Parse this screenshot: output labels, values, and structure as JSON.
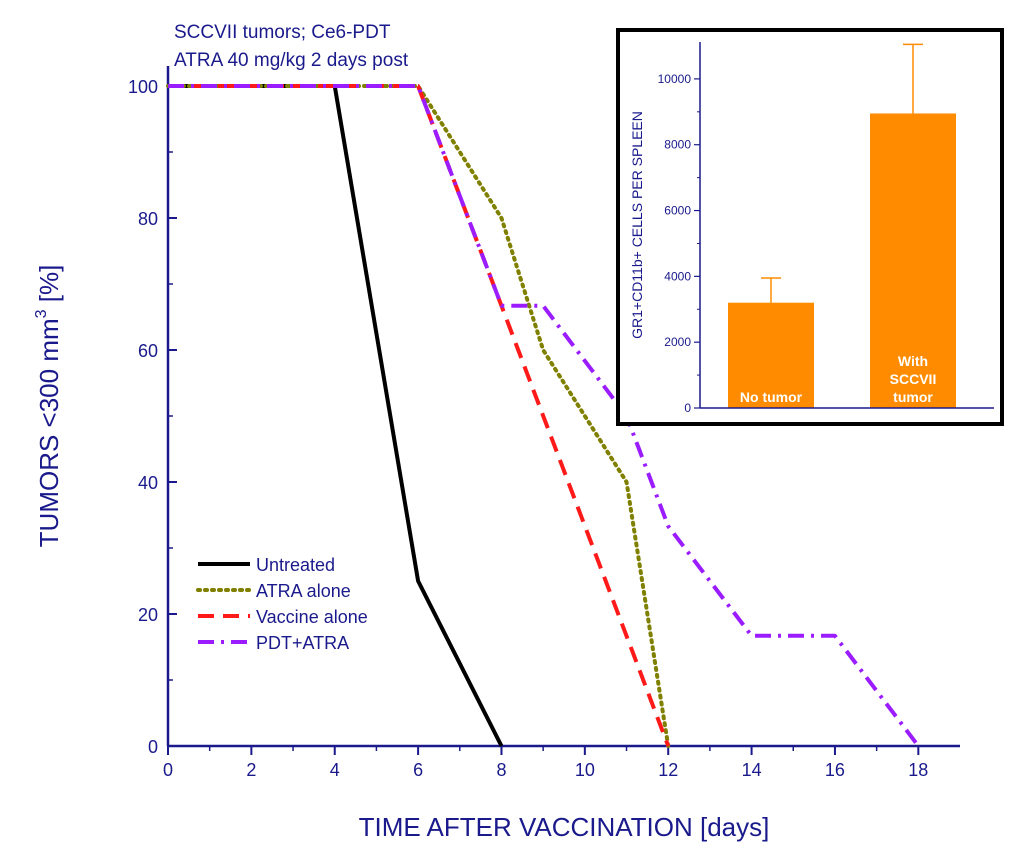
{
  "chart_data": [
    {
      "type": "line",
      "annotation_lines": [
        "SCCVII tumors; Ce6-PDT",
        "ATRA 40 mg/kg 2 days post"
      ],
      "xlabel": "TIME AFTER VACCINATION [days]",
      "ylabel_main": "TUMORS <300 mm",
      "ylabel_sup": "3",
      "ylabel_unit": " [%]",
      "xlim": [
        0,
        19
      ],
      "ylim": [
        0,
        100
      ],
      "xticks": [
        0,
        2,
        4,
        6,
        8,
        10,
        12,
        14,
        16,
        18
      ],
      "yticks": [
        0,
        20,
        40,
        60,
        80,
        100
      ],
      "legend_position": "lower-left",
      "series": [
        {
          "name": "Untreated",
          "color": "#000000",
          "dash": "solid",
          "x": [
            0,
            4,
            6,
            8
          ],
          "y": [
            100,
            100,
            25,
            0
          ]
        },
        {
          "name": "ATRA alone",
          "color": "#808000",
          "dash": "dot",
          "x": [
            0,
            6,
            8,
            9,
            11,
            12
          ],
          "y": [
            100,
            100,
            80,
            60,
            40,
            0
          ]
        },
        {
          "name": "Vaccine alone",
          "color": "#ff1a1a",
          "dash": "dash",
          "x": [
            0,
            6,
            8,
            12
          ],
          "y": [
            100,
            100,
            66.7,
            0
          ]
        },
        {
          "name": "PDT+ATRA",
          "color": "#9b1dff",
          "dash": "dashdot",
          "x": [
            0,
            6,
            8,
            9,
            11,
            12,
            14,
            16,
            18
          ],
          "y": [
            100,
            100,
            66.7,
            66.7,
            50,
            33.3,
            16.7,
            16.7,
            0
          ]
        }
      ]
    },
    {
      "type": "bar",
      "ylabel": "GR1+CD11b+ CELLS PER SPLEEN",
      "ylim": [
        0,
        11000
      ],
      "yticks": [
        0,
        2000,
        4000,
        6000,
        8000,
        10000
      ],
      "bar_color": "#ff8c00",
      "categories": [
        {
          "label_lines": [
            "No tumor"
          ],
          "value": 3200,
          "error": 750
        },
        {
          "label_lines": [
            "With",
            "SCCVII",
            "tumor"
          ],
          "value": 8950,
          "error": 2100
        }
      ]
    }
  ]
}
